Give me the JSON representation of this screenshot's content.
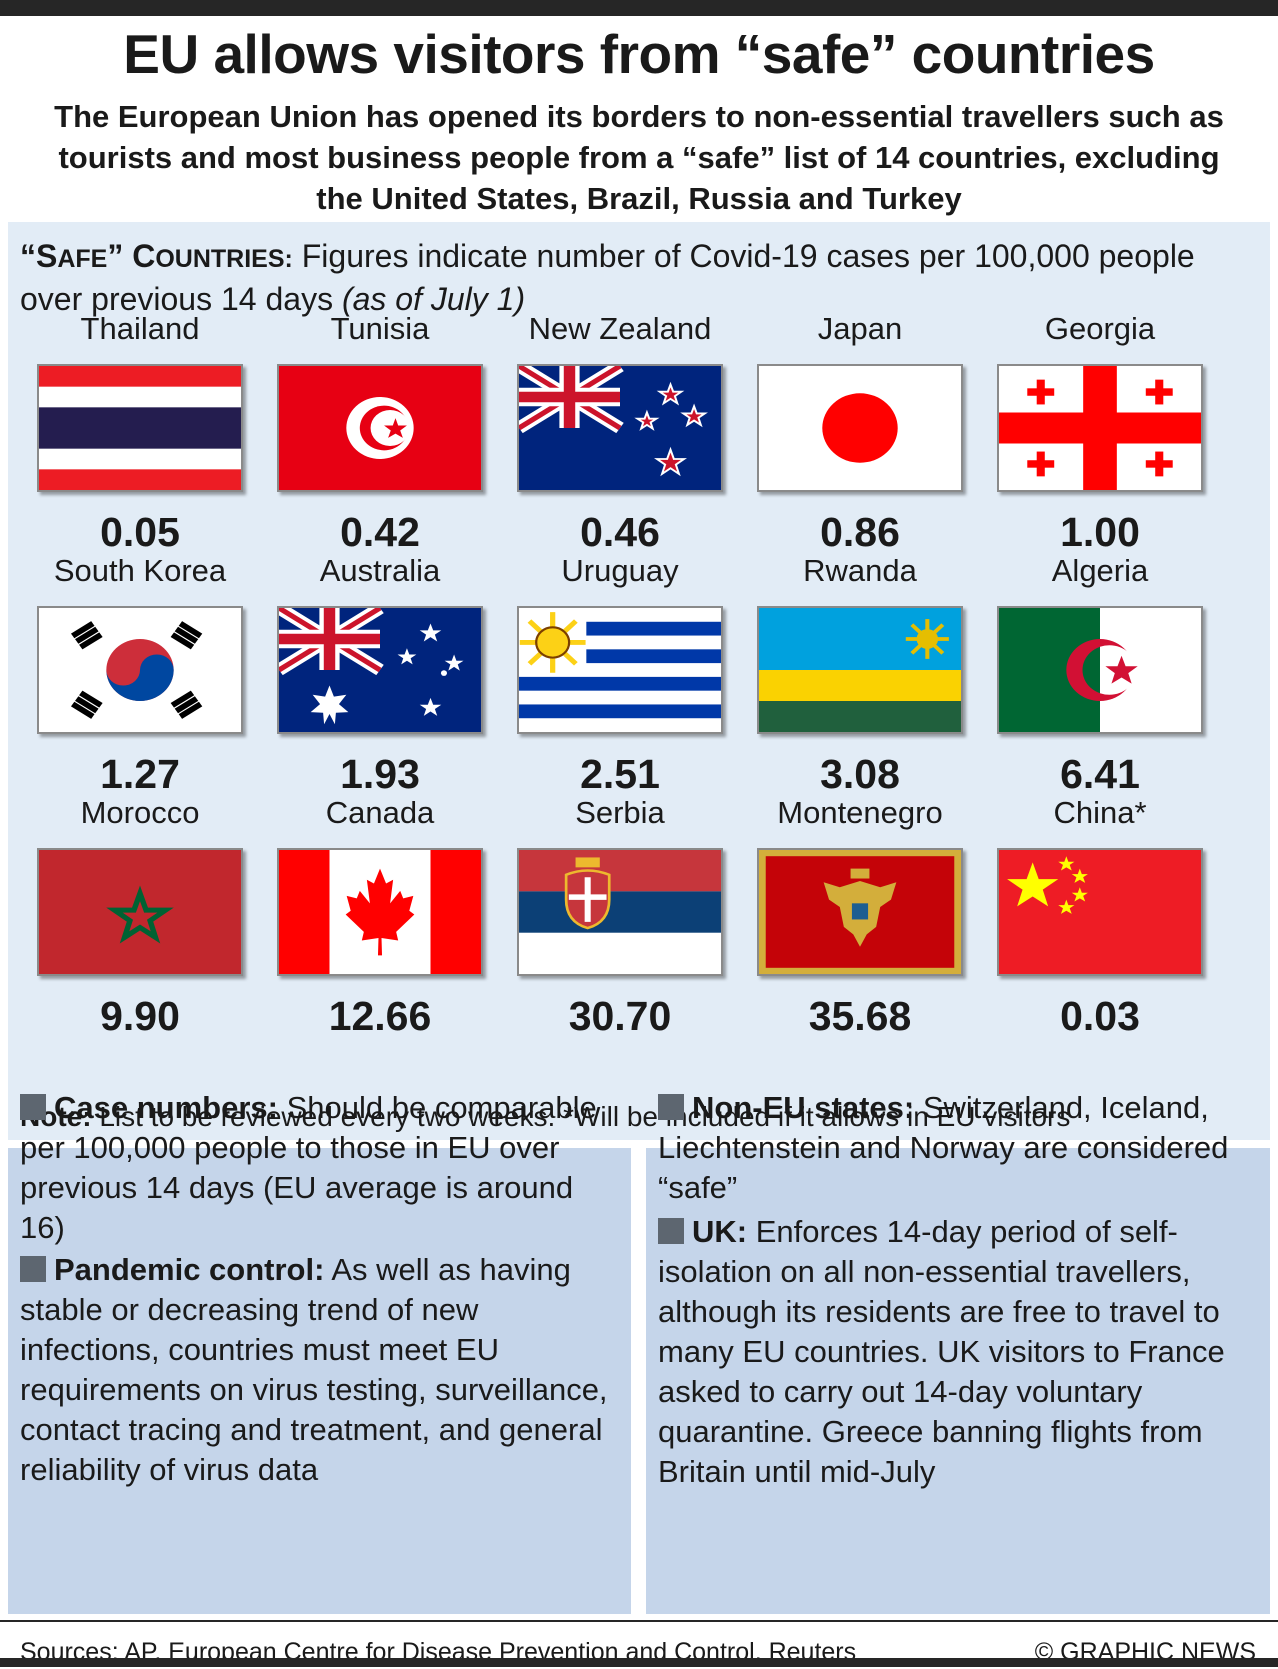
{
  "title": "EU allows visitors from “safe” countries",
  "subtitle": "The European Union has opened its borders to non-essential travellers such as tourists and most business people from a “safe” list of 14 countries, excluding the United States, Brazil, Russia and Turkey",
  "safe_header": {
    "label_part1": "“S",
    "label_part2": "AFE",
    "label_part3": "” C",
    "label_part4": "OUNTRIES:",
    "description": " Figures indicate number of Covid-19 cases per 100,000 people over previous 14 days ",
    "date": "(as of July 1)"
  },
  "countries": [
    {
      "name": "Thailand",
      "value": "0.05",
      "flag": "thailand-flag"
    },
    {
      "name": "Tunisia",
      "value": "0.42",
      "flag": "tunisia-flag"
    },
    {
      "name": "New Zealand",
      "value": "0.46",
      "flag": "new-zealand-flag"
    },
    {
      "name": "Japan",
      "value": "0.86",
      "flag": "japan-flag"
    },
    {
      "name": "Georgia",
      "value": "1.00",
      "flag": "georgia-flag"
    },
    {
      "name": "South Korea",
      "value": "1.27",
      "flag": "south-korea-flag"
    },
    {
      "name": "Australia",
      "value": "1.93",
      "flag": "australia-flag"
    },
    {
      "name": "Uruguay",
      "value": "2.51",
      "flag": "uruguay-flag"
    },
    {
      "name": "Rwanda",
      "value": "3.08",
      "flag": "rwanda-flag"
    },
    {
      "name": "Algeria",
      "value": "6.41",
      "flag": "algeria-flag"
    },
    {
      "name": "Morocco",
      "value": "9.90",
      "flag": "morocco-flag"
    },
    {
      "name": "Canada",
      "value": "12.66",
      "flag": "canada-flag"
    },
    {
      "name": "Serbia",
      "value": "30.70",
      "flag": "serbia-flag"
    },
    {
      "name": "Montenegro",
      "value": "35.68",
      "flag": "montenegro-flag"
    },
    {
      "name": "China*",
      "value": "0.03",
      "flag": "china-flag"
    }
  ],
  "note": {
    "label": "Note:",
    "text": " List to be reviewed every two weeks. *Will be included if it allows in EU visitors"
  },
  "criteria": {
    "case_numbers": {
      "label": "Case numbers:",
      "text": " Should be comparable per 100,000 people to those in EU over previous 14 days (EU average is around 16)"
    },
    "pandemic_control": {
      "label": "Pandemic control:",
      "text": " As well as having stable or decreasing trend of new infections, countries must meet EU requirements on virus testing, surveillance, contact tracing and treatment, and general reliability of virus data"
    },
    "non_eu": {
      "label": "Non-EU states:",
      "text": " Switzerland, Iceland, Liechtenstein and Norway are considered “safe”"
    },
    "uk": {
      "label": "UK:",
      "text": " Enforces 14-day period of self-isolation on all non-essential travellers, although its residents are free to travel to many EU countries. UK visitors to France asked to carry out 14-day voluntary quarantine. Greece banning flights from Britain until mid-July"
    }
  },
  "footer": {
    "sources": "Sources: AP, European Centre for Disease Prevention and Control, Reuters",
    "credit": "© GRAPHIC NEWS"
  },
  "colors": {
    "panel_bg": "#e2ecf6",
    "box_bg": "#c5d5ea",
    "bullet": "#5d6670",
    "bar": "#262626"
  }
}
